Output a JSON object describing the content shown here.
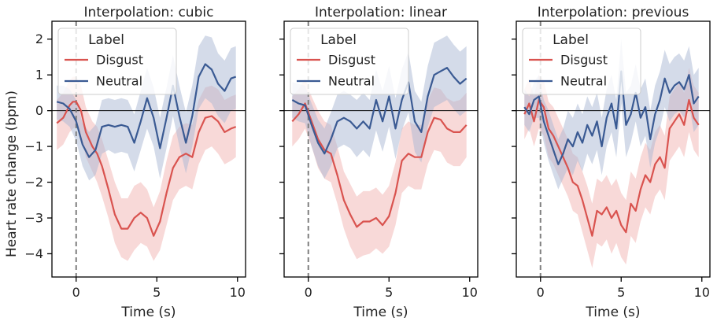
{
  "figure": {
    "ylabel": "Heart rate change (bpm)"
  },
  "colors": {
    "disgust": "#d9534f",
    "disgust_band": "#f2b9b8",
    "neutral": "#3a5a93",
    "neutral_band": "#aab7d3",
    "zero_line": "#000000",
    "onset_line": "#7f7f7f"
  },
  "chart_data": [
    {
      "type": "line",
      "title": "Interpolation: cubic",
      "xlabel": "Time (s)",
      "ylabel": "Heart rate change (bpm)",
      "xlim": [
        -1.5,
        10.5
      ],
      "ylim": [
        -4.65,
        2.5
      ],
      "xticks": [
        0,
        5,
        10
      ],
      "yticks": [
        2,
        1,
        0,
        -1,
        -2,
        -3,
        -4
      ],
      "grid": false,
      "legend": {
        "title": "Label",
        "position": "top-left",
        "entries": [
          "Disgust",
          "Neutral"
        ]
      },
      "series": [
        {
          "name": "Disgust",
          "x": [
            -1.2,
            -0.8,
            -0.4,
            -0.2,
            0,
            0.3,
            0.6,
            1.0,
            1.3,
            1.6,
            2.0,
            2.4,
            2.8,
            3.2,
            3.6,
            4.0,
            4.4,
            4.8,
            5.2,
            5.6,
            6.0,
            6.4,
            6.8,
            7.2,
            7.6,
            8.0,
            8.4,
            8.8,
            9.2,
            9.6,
            9.9
          ],
          "y": [
            -0.35,
            -0.2,
            0.15,
            0.25,
            0.25,
            0.0,
            -0.6,
            -1.0,
            -1.2,
            -1.55,
            -2.2,
            -2.9,
            -3.3,
            -3.3,
            -3.0,
            -2.85,
            -3.0,
            -3.5,
            -3.1,
            -2.3,
            -1.6,
            -1.3,
            -1.2,
            -1.3,
            -0.6,
            -0.2,
            -0.15,
            -0.3,
            -0.6,
            -0.5,
            -0.45
          ],
          "lower": [
            -1.1,
            -0.95,
            -0.6,
            -0.5,
            -0.45,
            -0.7,
            -1.3,
            -1.7,
            -2.0,
            -2.4,
            -3.0,
            -3.7,
            -4.1,
            -4.2,
            -3.9,
            -3.7,
            -3.8,
            -4.2,
            -3.9,
            -3.2,
            -2.5,
            -2.2,
            -2.1,
            -2.2,
            -1.5,
            -1.1,
            -1.0,
            -1.2,
            -1.5,
            -1.4,
            -1.3
          ],
          "upper": [
            0.3,
            0.5,
            0.85,
            0.95,
            0.95,
            0.7,
            0.1,
            -0.3,
            -0.45,
            -0.8,
            -1.4,
            -2.0,
            -2.45,
            -2.45,
            -2.1,
            -2.0,
            -2.2,
            -2.7,
            -2.25,
            -1.4,
            -0.7,
            -0.45,
            -0.35,
            -0.4,
            0.3,
            0.65,
            0.7,
            0.6,
            0.3,
            0.4,
            0.45
          ]
        },
        {
          "name": "Neutral",
          "x": [
            -1.2,
            -0.8,
            -0.4,
            0,
            0.4,
            0.8,
            1.2,
            1.6,
            2.0,
            2.4,
            2.8,
            3.2,
            3.6,
            4.0,
            4.4,
            4.8,
            5.2,
            5.6,
            6.0,
            6.4,
            6.8,
            7.2,
            7.6,
            8.0,
            8.4,
            8.8,
            9.2,
            9.6,
            9.9
          ],
          "y": [
            0.25,
            0.2,
            0.05,
            -0.3,
            -0.95,
            -1.3,
            -1.1,
            -0.45,
            -0.4,
            -0.45,
            -0.4,
            -0.45,
            -0.9,
            -0.3,
            0.35,
            -0.2,
            -1.05,
            -0.2,
            0.7,
            -0.15,
            -0.9,
            -0.15,
            0.95,
            1.3,
            1.15,
            0.75,
            0.55,
            0.9,
            0.95
          ],
          "lower": [
            -0.25,
            -0.3,
            -0.45,
            -0.85,
            -1.55,
            -1.95,
            -1.8,
            -1.2,
            -1.1,
            -1.2,
            -1.15,
            -1.2,
            -1.7,
            -1.1,
            -0.5,
            -1.0,
            -1.9,
            -1.05,
            -0.15,
            -1.0,
            -1.75,
            -1.0,
            0.05,
            0.35,
            0.2,
            -0.15,
            -0.35,
            0.0,
            0.05
          ],
          "upper": [
            0.7,
            0.7,
            0.6,
            0.3,
            -0.35,
            -0.6,
            -0.4,
            0.3,
            0.35,
            0.3,
            0.35,
            0.3,
            -0.1,
            0.55,
            1.2,
            0.65,
            -0.2,
            0.65,
            1.55,
            0.7,
            -0.05,
            0.7,
            1.8,
            2.1,
            2.05,
            1.6,
            1.4,
            1.75,
            1.8
          ]
        }
      ]
    },
    {
      "type": "line",
      "title": "Interpolation: linear",
      "xlabel": "Time (s)",
      "ylabel": "",
      "xlim": [
        -1.5,
        10.5
      ],
      "ylim": [
        -4.65,
        2.5
      ],
      "xticks": [
        0,
        5,
        10
      ],
      "yticks": [
        2,
        1,
        0,
        -1,
        -2,
        -3,
        -4
      ],
      "grid": false,
      "legend": {
        "title": "Label",
        "position": "top-left",
        "entries": [
          "Disgust",
          "Neutral"
        ]
      },
      "series": [
        {
          "name": "Disgust",
          "x": [
            -1.0,
            -0.6,
            -0.2,
            0.2,
            0.6,
            1.0,
            1.4,
            1.8,
            2.2,
            2.6,
            3.0,
            3.4,
            3.8,
            4.2,
            4.6,
            5.0,
            5.4,
            5.8,
            6.2,
            6.6,
            7.0,
            7.4,
            7.8,
            8.2,
            8.6,
            9.0,
            9.4,
            9.8
          ],
          "y": [
            -0.3,
            -0.1,
            0.2,
            -0.3,
            -0.8,
            -1.1,
            -1.2,
            -1.8,
            -2.5,
            -2.9,
            -3.25,
            -3.1,
            -3.1,
            -3.0,
            -3.2,
            -2.95,
            -2.3,
            -1.4,
            -1.2,
            -1.3,
            -1.3,
            -0.6,
            -0.2,
            -0.25,
            -0.5,
            -0.6,
            -0.6,
            -0.4
          ],
          "lower": [
            -1.0,
            -0.8,
            -0.5,
            -1.0,
            -1.6,
            -1.9,
            -2.0,
            -2.6,
            -3.3,
            -3.8,
            -4.15,
            -4.05,
            -4.0,
            -3.85,
            -4.0,
            -3.8,
            -3.2,
            -2.3,
            -2.1,
            -2.2,
            -2.2,
            -1.5,
            -1.1,
            -1.15,
            -1.45,
            -1.55,
            -1.55,
            -1.3
          ],
          "upper": [
            0.4,
            0.6,
            0.9,
            0.4,
            0.0,
            -0.3,
            -0.4,
            -1.0,
            -1.7,
            -2.05,
            -2.4,
            -2.25,
            -2.25,
            -2.15,
            -2.35,
            -2.1,
            -1.45,
            -0.5,
            -0.3,
            -0.4,
            -0.4,
            0.3,
            0.65,
            0.6,
            0.35,
            0.25,
            0.3,
            0.5
          ]
        },
        {
          "name": "Neutral",
          "x": [
            -1.0,
            -0.6,
            -0.2,
            0.2,
            0.6,
            1.0,
            1.4,
            1.8,
            2.2,
            2.6,
            3.0,
            3.4,
            3.8,
            4.2,
            4.6,
            5.0,
            5.4,
            5.8,
            6.2,
            6.6,
            7.0,
            7.4,
            7.8,
            8.2,
            8.6,
            9.0,
            9.4,
            9.8
          ],
          "y": [
            0.3,
            0.2,
            0.15,
            -0.4,
            -0.9,
            -1.2,
            -0.8,
            -0.3,
            -0.2,
            -0.3,
            -0.5,
            -0.3,
            -0.5,
            0.3,
            -0.3,
            0.4,
            -0.5,
            0.3,
            0.8,
            -0.3,
            -0.6,
            0.4,
            1.0,
            1.1,
            1.2,
            0.95,
            0.75,
            0.9
          ],
          "lower": [
            -0.2,
            -0.3,
            -0.35,
            -1.0,
            -1.55,
            -1.9,
            -1.55,
            -1.05,
            -0.95,
            -1.05,
            -1.3,
            -1.1,
            -1.3,
            -0.55,
            -1.15,
            -0.45,
            -1.35,
            -0.55,
            -0.05,
            -1.15,
            -1.45,
            -0.45,
            0.1,
            0.2,
            0.3,
            0.05,
            -0.15,
            0.0
          ],
          "upper": [
            0.8,
            0.75,
            0.7,
            0.2,
            -0.25,
            -0.5,
            -0.05,
            0.45,
            0.55,
            0.45,
            0.3,
            0.5,
            0.3,
            1.15,
            0.55,
            1.25,
            0.35,
            1.15,
            1.65,
            0.55,
            0.25,
            1.25,
            1.9,
            2.0,
            2.1,
            1.85,
            1.65,
            1.8
          ]
        }
      ]
    },
    {
      "type": "line",
      "title": "Interpolation: previous",
      "xlabel": "Time (s)",
      "ylabel": "",
      "xlim": [
        -1.5,
        10.5
      ],
      "ylim": [
        -4.65,
        2.5
      ],
      "xticks": [
        0,
        5,
        10
      ],
      "yticks": [
        2,
        1,
        0,
        -1,
        -2,
        -3,
        -4
      ],
      "grid": false,
      "legend": {
        "title": "Label",
        "position": "top-left",
        "entries": [
          "Disgust",
          "Neutral"
        ]
      },
      "series": [
        {
          "name": "Disgust",
          "x": [
            -1.0,
            -0.7,
            -0.4,
            -0.1,
            0.2,
            0.5,
            0.8,
            1.1,
            1.4,
            1.7,
            2.0,
            2.3,
            2.6,
            2.9,
            3.2,
            3.5,
            3.8,
            4.1,
            4.4,
            4.7,
            5.0,
            5.3,
            5.6,
            5.9,
            6.2,
            6.5,
            6.8,
            7.1,
            7.4,
            7.7,
            8.0,
            8.3,
            8.6,
            8.9,
            9.2,
            9.5,
            9.8
          ],
          "y": [
            -0.1,
            0.2,
            -0.3,
            0.3,
            0.1,
            -0.5,
            -0.7,
            -1.0,
            -1.3,
            -1.6,
            -2.0,
            -2.1,
            -2.5,
            -3.0,
            -3.5,
            -2.8,
            -2.9,
            -2.7,
            -3.0,
            -2.8,
            -3.2,
            -3.4,
            -2.6,
            -2.8,
            -2.2,
            -1.8,
            -2.0,
            -1.5,
            -1.3,
            -1.6,
            -0.5,
            -0.3,
            -0.1,
            -0.4,
            0.3,
            -0.2,
            -0.4
          ],
          "lower": [
            -0.8,
            -0.5,
            -1.0,
            -0.5,
            -0.7,
            -1.3,
            -1.5,
            -1.8,
            -2.1,
            -2.4,
            -2.8,
            -2.9,
            -3.4,
            -3.9,
            -4.4,
            -3.7,
            -3.8,
            -3.6,
            -4.0,
            -3.7,
            -4.1,
            -4.3,
            -3.5,
            -3.7,
            -3.1,
            -2.7,
            -2.9,
            -2.4,
            -2.2,
            -2.5,
            -1.4,
            -1.2,
            -1.0,
            -1.3,
            -0.6,
            -1.1,
            -1.3
          ],
          "upper": [
            0.6,
            0.9,
            0.4,
            1.0,
            0.85,
            0.25,
            0.1,
            -0.2,
            -0.5,
            -0.8,
            -1.2,
            -1.3,
            -1.7,
            -2.1,
            -2.6,
            -1.9,
            -2.0,
            -1.8,
            -2.1,
            -1.9,
            -2.3,
            -2.5,
            -1.7,
            -1.9,
            -1.3,
            -0.9,
            -1.1,
            -0.6,
            -0.4,
            -0.7,
            0.4,
            0.6,
            0.8,
            0.5,
            1.2,
            0.7,
            0.5
          ]
        },
        {
          "name": "Neutral",
          "x": [
            -1.0,
            -0.7,
            -0.4,
            -0.1,
            0.2,
            0.5,
            0.8,
            1.1,
            1.4,
            1.7,
            2.0,
            2.3,
            2.6,
            2.9,
            3.2,
            3.5,
            3.8,
            4.1,
            4.4,
            4.7,
            5.0,
            5.3,
            5.6,
            5.9,
            6.2,
            6.5,
            6.8,
            7.1,
            7.4,
            7.7,
            8.0,
            8.3,
            8.6,
            8.9,
            9.2,
            9.5,
            9.8
          ],
          "y": [
            0.1,
            -0.1,
            0.3,
            0.4,
            -0.3,
            -0.7,
            -1.1,
            -1.5,
            -1.2,
            -0.8,
            -1.0,
            -0.6,
            -0.9,
            -0.4,
            -0.7,
            -0.3,
            -1.0,
            -0.2,
            0.2,
            -0.5,
            1.1,
            -0.4,
            -0.1,
            0.5,
            -0.2,
            0.1,
            -0.8,
            -0.1,
            0.3,
            0.9,
            0.5,
            0.7,
            0.8,
            0.6,
            1.0,
            0.2,
            0.4
          ],
          "lower": [
            -0.4,
            -0.6,
            -0.2,
            -0.2,
            -0.9,
            -1.4,
            -1.8,
            -2.2,
            -1.9,
            -1.6,
            -1.8,
            -1.4,
            -1.7,
            -1.2,
            -1.5,
            -1.1,
            -1.8,
            -1.0,
            -0.6,
            -1.3,
            0.2,
            -1.3,
            -0.9,
            -0.3,
            -1.0,
            -0.7,
            -1.6,
            -0.9,
            -0.5,
            0.1,
            -0.3,
            -0.1,
            0.0,
            -0.2,
            0.2,
            -0.6,
            -0.4
          ],
          "upper": [
            0.6,
            0.4,
            0.8,
            1.0,
            0.3,
            0.0,
            -0.4,
            -0.8,
            -0.5,
            0.0,
            -0.2,
            0.2,
            -0.1,
            0.4,
            0.1,
            0.5,
            -0.2,
            0.6,
            1.0,
            0.3,
            2.0,
            0.5,
            0.7,
            1.3,
            0.6,
            0.9,
            0.0,
            0.7,
            1.1,
            1.7,
            1.3,
            1.5,
            1.6,
            1.4,
            1.8,
            1.0,
            1.2
          ]
        }
      ]
    }
  ]
}
